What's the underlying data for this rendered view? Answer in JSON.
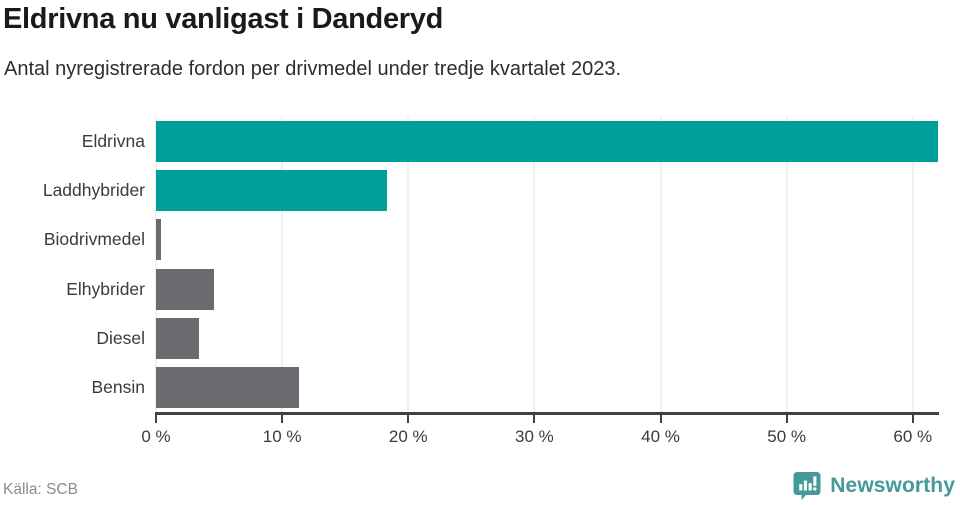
{
  "header": {
    "title": "Eldrivna nu vanligast i Danderyd",
    "subtitle": "Antal nyregistrerade fordon per drivmedel under tredje kvartalet 2023."
  },
  "chart_data": {
    "type": "bar",
    "orientation": "horizontal",
    "title": "Eldrivna nu vanligast i Danderyd",
    "subtitle": "Antal nyregistrerade fordon per drivmedel under tredje kvartalet 2023.",
    "categories": [
      "Eldrivna",
      "Laddhybrider",
      "Biodrivmedel",
      "Elhybrider",
      "Diesel",
      "Bensin"
    ],
    "values": [
      62.0,
      18.3,
      0.4,
      4.6,
      3.4,
      11.3
    ],
    "unit": "%",
    "xlim": [
      0,
      62
    ],
    "xticks": [
      {
        "value": 0,
        "label": "0 %"
      },
      {
        "value": 10,
        "label": "10 %"
      },
      {
        "value": 20,
        "label": "20 %"
      },
      {
        "value": 30,
        "label": "30 %"
      },
      {
        "value": 40,
        "label": "40 %"
      },
      {
        "value": 50,
        "label": "50 %"
      },
      {
        "value": 60,
        "label": "60 %"
      }
    ],
    "bar_colors": [
      "#00a09a",
      "#00a09a",
      "#6d6a6f",
      "#6d6a6f",
      "#6d6a6f",
      "#6d6a6f"
    ],
    "highlight_color": "#00a09a",
    "default_color": "#6d6a6f",
    "grid": "vertical",
    "legend": "none"
  },
  "footer": {
    "source": "Källa: SCB",
    "brand": "Newsworthy",
    "brand_color": "#45999b"
  }
}
